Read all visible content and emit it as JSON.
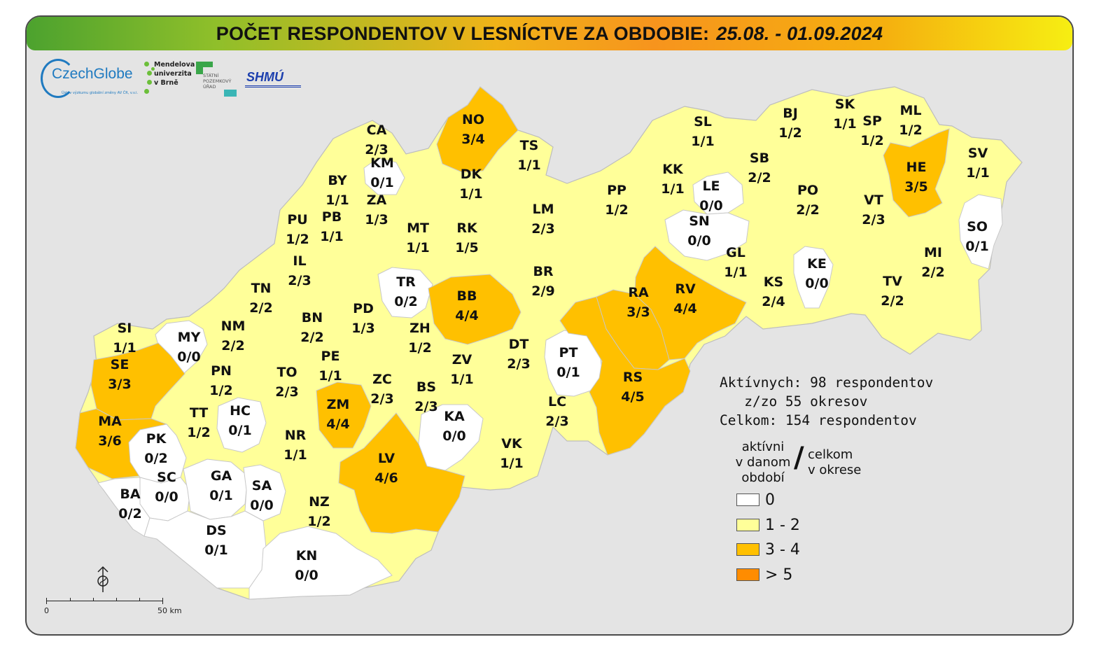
{
  "title": {
    "main": "POČET RESPONDENTOV V LESNÍCTVE ZA OBDOBIE:",
    "dates": "25.08. - 01.09.2024"
  },
  "logos": {
    "czechglobe": "CzechGlobe",
    "czechglobe_sub": "Ústav výzkumu globální změny AV ČR, v.v.i.",
    "mendel": [
      "Mendelova",
      "univerzita",
      "v Brně"
    ],
    "spu": [
      "STÁTNÍ",
      "POZEMKOVÝ",
      "ÚŘAD"
    ],
    "shmu": "SHMÚ"
  },
  "colors": {
    "zero": "#ffffff",
    "low": "#ffff99",
    "mid": "#ffc000",
    "high": "#ff8c00",
    "border": "#c8c8c8"
  },
  "stats": {
    "active": "Aktívnych: 98 respondentov",
    "districts": "   z/zo 55 okresov",
    "total": "Celkom: 154 respondentov"
  },
  "legend": {
    "head_left": [
      "aktívni",
      "v danom",
      "období"
    ],
    "slash": "/",
    "head_right": [
      "celkom",
      "v okrese"
    ],
    "items": [
      {
        "label": "0",
        "color": "#ffffff"
      },
      {
        "label": "1 - 2",
        "color": "#ffff99"
      },
      {
        "label": "3 - 4",
        "color": "#ffc000"
      },
      {
        "label": "> 5",
        "color": "#ff8c00"
      }
    ]
  },
  "scale": {
    "start": "0",
    "end": "50 km"
  },
  "north_icon": "north-arrow-icon",
  "districts": [
    {
      "code": "CA",
      "value": "2/3",
      "active": 2
    },
    {
      "code": "NO",
      "value": "3/4",
      "active": 3
    },
    {
      "code": "TS",
      "value": "1/1",
      "active": 1
    },
    {
      "code": "KM",
      "value": "0/1",
      "active": 0
    },
    {
      "code": "BY",
      "value": "1/1",
      "active": 1
    },
    {
      "code": "ZA",
      "value": "1/3",
      "active": 1
    },
    {
      "code": "DK",
      "value": "1/1",
      "active": 1
    },
    {
      "code": "PU",
      "value": "1/2",
      "active": 1
    },
    {
      "code": "PB",
      "value": "1/1",
      "active": 1
    },
    {
      "code": "MT",
      "value": "1/1",
      "active": 1
    },
    {
      "code": "RK",
      "value": "1/5",
      "active": 1
    },
    {
      "code": "LM",
      "value": "2/3",
      "active": 2
    },
    {
      "code": "IL",
      "value": "2/3",
      "active": 2
    },
    {
      "code": "TN",
      "value": "2/2",
      "active": 2
    },
    {
      "code": "TR",
      "value": "0/2",
      "active": 0
    },
    {
      "code": "BB",
      "value": "4/4",
      "active": 4
    },
    {
      "code": "BR",
      "value": "2/9",
      "active": 2
    },
    {
      "code": "PD",
      "value": "1/3",
      "active": 1
    },
    {
      "code": "BN",
      "value": "2/2",
      "active": 2
    },
    {
      "code": "NM",
      "value": "2/2",
      "active": 2
    },
    {
      "code": "SI",
      "value": "1/1",
      "active": 1
    },
    {
      "code": "MY",
      "value": "0/0",
      "active": 0
    },
    {
      "code": "SE",
      "value": "3/3",
      "active": 3
    },
    {
      "code": "PE",
      "value": "1/1",
      "active": 1
    },
    {
      "code": "ZH",
      "value": "1/2",
      "active": 1
    },
    {
      "code": "DT",
      "value": "2/3",
      "active": 2
    },
    {
      "code": "ZV",
      "value": "1/1",
      "active": 1
    },
    {
      "code": "PN",
      "value": "1/2",
      "active": 1
    },
    {
      "code": "TO",
      "value": "2/3",
      "active": 2
    },
    {
      "code": "ZC",
      "value": "2/3",
      "active": 2
    },
    {
      "code": "BS",
      "value": "2/3",
      "active": 2
    },
    {
      "code": "PT",
      "value": "0/1",
      "active": 0
    },
    {
      "code": "LC",
      "value": "2/3",
      "active": 2
    },
    {
      "code": "MA",
      "value": "3/6",
      "active": 3
    },
    {
      "code": "TT",
      "value": "1/2",
      "active": 1
    },
    {
      "code": "HC",
      "value": "0/1",
      "active": 0
    },
    {
      "code": "ZM",
      "value": "4/4",
      "active": 4
    },
    {
      "code": "KA",
      "value": "0/0",
      "active": 0
    },
    {
      "code": "NR",
      "value": "1/1",
      "active": 1
    },
    {
      "code": "PK",
      "value": "0/2",
      "active": 0
    },
    {
      "code": "LV",
      "value": "4/6",
      "active": 4
    },
    {
      "code": "VK",
      "value": "1/1",
      "active": 1
    },
    {
      "code": "SC",
      "value": "0/0",
      "active": 0
    },
    {
      "code": "GA",
      "value": "0/1",
      "active": 0
    },
    {
      "code": "SA",
      "value": "0/0",
      "active": 0
    },
    {
      "code": "BA",
      "value": "0/2",
      "active": 0
    },
    {
      "code": "NZ",
      "value": "1/2",
      "active": 1
    },
    {
      "code": "DS",
      "value": "0/1",
      "active": 0
    },
    {
      "code": "KN",
      "value": "0/0",
      "active": 0
    },
    {
      "code": "SL",
      "value": "1/1",
      "active": 1
    },
    {
      "code": "BJ",
      "value": "1/2",
      "active": 1
    },
    {
      "code": "SK",
      "value": "1/1",
      "active": 1
    },
    {
      "code": "ML",
      "value": "1/2",
      "active": 1
    },
    {
      "code": "SP",
      "value": "1/2",
      "active": 1
    },
    {
      "code": "HE",
      "value": "3/5",
      "active": 3
    },
    {
      "code": "SV",
      "value": "1/1",
      "active": 1
    },
    {
      "code": "KK",
      "value": "1/1",
      "active": 1
    },
    {
      "code": "SB",
      "value": "2/2",
      "active": 2
    },
    {
      "code": "PP",
      "value": "1/2",
      "active": 1
    },
    {
      "code": "LE",
      "value": "0/0",
      "active": 0
    },
    {
      "code": "PO",
      "value": "2/2",
      "active": 2
    },
    {
      "code": "SN",
      "value": "0/0",
      "active": 0
    },
    {
      "code": "VT",
      "value": "2/3",
      "active": 2
    },
    {
      "code": "SO",
      "value": "0/1",
      "active": 0
    },
    {
      "code": "GL",
      "value": "1/1",
      "active": 1
    },
    {
      "code": "MI",
      "value": "2/2",
      "active": 2
    },
    {
      "code": "KE",
      "value": "0/0",
      "active": 0
    },
    {
      "code": "RV",
      "value": "4/4",
      "active": 4
    },
    {
      "code": "RA",
      "value": "3/3",
      "active": 3
    },
    {
      "code": "KS",
      "value": "2/4",
      "active": 2
    },
    {
      "code": "TV",
      "value": "2/2",
      "active": 2
    },
    {
      "code": "RS",
      "value": "4/5",
      "active": 4
    }
  ]
}
